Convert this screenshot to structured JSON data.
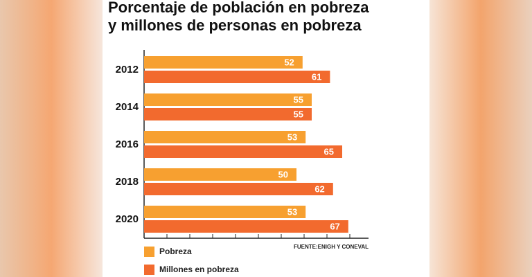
{
  "chart_data": {
    "type": "bar",
    "orientation": "horizontal",
    "title_lines": [
      "Porcentaje de población en pobreza",
      "y millones de personas en pobreza"
    ],
    "categories": [
      "2012",
      "2014",
      "2016",
      "2018",
      "2020"
    ],
    "series": [
      {
        "name": "Pobreza",
        "color": "#f7a030",
        "values": [
          52,
          55,
          53,
          50,
          53
        ]
      },
      {
        "name": "Millones en pobreza",
        "color": "#f26a2e",
        "values": [
          61,
          55,
          65,
          62,
          67
        ]
      }
    ],
    "xlim": [
      0,
      75
    ],
    "xticks": [
      0,
      7.5,
      15,
      22.5,
      30,
      37.5,
      45,
      52.5,
      60,
      67.5,
      75
    ],
    "source": "FUENTE:ENIGH Y CONEVAL"
  }
}
